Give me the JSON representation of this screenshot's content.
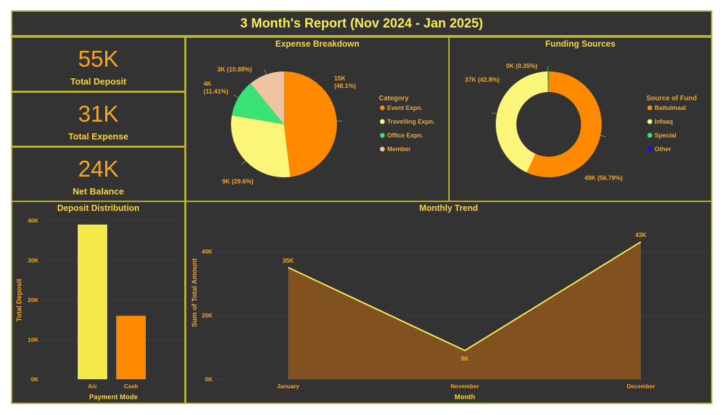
{
  "header": {
    "title": "3 Month's Report (Nov 2024 - Jan 2025)"
  },
  "kpis": {
    "total_deposit": {
      "value": "55K",
      "label": "Total Deposit"
    },
    "total_expense": {
      "value": "31K",
      "label": "Total Expense"
    },
    "net_balance": {
      "value": "24K",
      "label": "Net Balance"
    }
  },
  "panels": {
    "expense_title": "Expense Breakdown",
    "funding_title": "Funding Sources",
    "deposit_title": "Deposit Distribution",
    "trend_title": "Monthly Trend"
  },
  "chart_data": [
    {
      "id": "expense",
      "type": "pie",
      "title": "Expense Breakdown",
      "legend_title": "Category",
      "legend_position": "right",
      "slices": [
        {
          "name": "Event Expn.",
          "value": 15,
          "percent": 48.1,
          "label": "15K (48.1%)",
          "color": "#ff8a00"
        },
        {
          "name": "Travelling Expn.",
          "value": 9,
          "percent": 29.6,
          "label": "9K (29.6%)",
          "color": "#fbf67a"
        },
        {
          "name": "Office Expn.",
          "value": 4,
          "percent": 11.41,
          "label": "4K (11.41%)",
          "color": "#3be377"
        },
        {
          "name": "Member",
          "value": 3,
          "percent": 10.88,
          "label": "3K (10.88%)",
          "color": "#efc4a3"
        }
      ]
    },
    {
      "id": "funding",
      "type": "pie",
      "variant": "donut",
      "title": "Funding Sources",
      "legend_title": "Source of Fund",
      "legend_position": "right",
      "slices": [
        {
          "name": "Baitulmaal",
          "value": 49,
          "percent": 56.79,
          "label": "49K (56.79%)",
          "color": "#ff8a00"
        },
        {
          "name": "Infaaq",
          "value": 37,
          "percent": 42.8,
          "label": "37K (42.8%)",
          "color": "#fbf67a"
        },
        {
          "name": "Special",
          "value": 0,
          "percent": 0.35,
          "label": "0K (0.35%)",
          "color": "#3be377"
        },
        {
          "name": "Other",
          "value": 0,
          "percent": 0.06,
          "label": "",
          "color": "#1414e6"
        }
      ]
    },
    {
      "id": "deposit",
      "type": "bar",
      "title": "Deposit Distribution",
      "xlabel": "Payment Mode",
      "ylabel": "Total Deposit",
      "categories": [
        "A/c",
        "Cash"
      ],
      "values": [
        39,
        16
      ],
      "colors": [
        "#f5e84a",
        "#ff8a00"
      ],
      "yticks": [
        "0K",
        "10K",
        "20K",
        "30K",
        "40K"
      ],
      "ylim": [
        0,
        40
      ],
      "grid": true
    },
    {
      "id": "trend",
      "type": "area",
      "title": "Monthly Trend",
      "xlabel": "Month",
      "ylabel": "Sum of Total Amount",
      "categories": [
        "January",
        "November",
        "December"
      ],
      "values": [
        35,
        9,
        43
      ],
      "data_labels": [
        "35K",
        "9K",
        "43K"
      ],
      "yticks": [
        "0K",
        "20K",
        "40K"
      ],
      "ylim": [
        0,
        40
      ],
      "line_color": "#f7ec5a",
      "fill_color": "#86531f",
      "grid": true
    }
  ]
}
